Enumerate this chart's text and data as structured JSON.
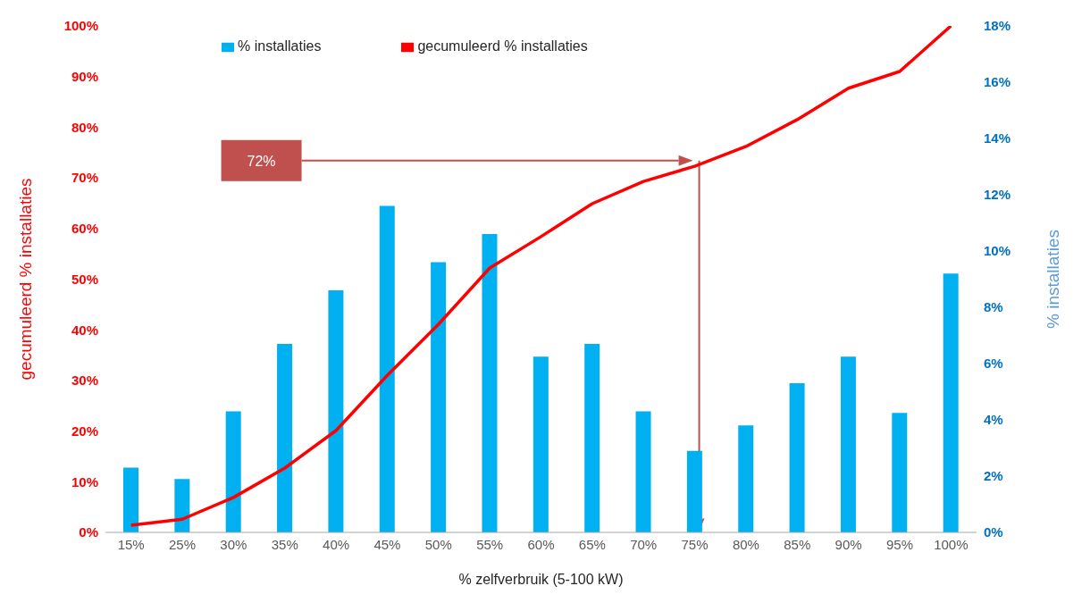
{
  "chart_data": {
    "type": "bar",
    "categories": [
      "15%",
      "25%",
      "30%",
      "35%",
      "40%",
      "45%",
      "50%",
      "55%",
      "60%",
      "65%",
      "70%",
      "75%",
      "80%",
      "85%",
      "90%",
      "95%",
      "100%"
    ],
    "series": [
      {
        "name": "% installaties",
        "axis": "y2",
        "color": "#00b0f0",
        "values": [
          2.3,
          1.9,
          4.3,
          6.7,
          8.6,
          11.6,
          9.6,
          10.6,
          6.25,
          6.7,
          4.3,
          2.9,
          3.8,
          5.3,
          6.25,
          4.25,
          9.2
        ]
      },
      {
        "name": "gecumuleerd % installaties",
        "type": "line",
        "color": "#ff0000",
        "values": [
          1.4,
          2.6,
          6.9,
          12.7,
          20.1,
          31,
          41.1,
          52.2,
          58.4,
          64.9,
          69.3,
          72.3,
          76.2,
          81.5,
          87.7,
          91,
          100
        ]
      }
    ],
    "xlabel": "% zelfverbruik (5-100 kW)",
    "ylabel": "gecumuleerd % installaties",
    "y2label": "% installaties",
    "ylim": [
      0,
      100
    ],
    "yticks": [
      {
        "value": 0,
        "label": "0%"
      },
      {
        "value": 10,
        "label": "10%"
      },
      {
        "value": 20,
        "label": "20%"
      },
      {
        "value": 30,
        "label": "30%"
      },
      {
        "value": 40,
        "label": "40%"
      },
      {
        "value": 50,
        "label": "50%"
      },
      {
        "value": 60,
        "label": "60%"
      },
      {
        "value": 70,
        "label": "70%"
      },
      {
        "value": 80,
        "label": "80%"
      },
      {
        "value": 90,
        "label": "90%"
      },
      {
        "value": 100,
        "label": "100%"
      }
    ],
    "y2lim": [
      0,
      18
    ],
    "y2ticks": [
      {
        "value": 0,
        "label": "0%"
      },
      {
        "value": 2,
        "label": "2%"
      },
      {
        "value": 4,
        "label": "4%"
      },
      {
        "value": 6,
        "label": "6%"
      },
      {
        "value": 8,
        "label": "8%"
      },
      {
        "value": 10,
        "label": "10%"
      },
      {
        "value": 12,
        "label": "12%"
      },
      {
        "value": 14,
        "label": "14%"
      },
      {
        "value": 16,
        "label": "16%"
      },
      {
        "value": 18,
        "label": "18%"
      }
    ],
    "annotations": [
      "72%"
    ],
    "legend": "top",
    "grid": false,
    "marker": "none"
  }
}
